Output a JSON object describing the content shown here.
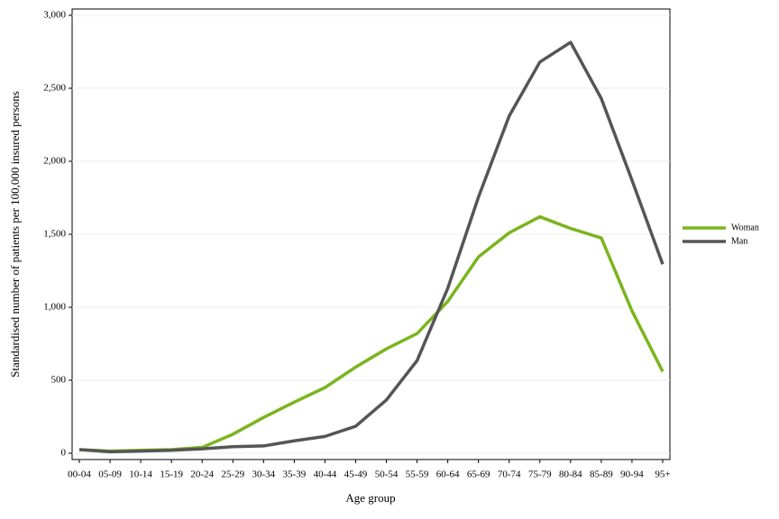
{
  "chart_data": {
    "type": "line",
    "x_label": "Age group",
    "y_label": "Standardised number of patients per 100,000 insured persons",
    "categories": [
      "00-04",
      "05-09",
      "10-14",
      "15-19",
      "20-24",
      "25-29",
      "30-34",
      "35-39",
      "40-44",
      "45-49",
      "50-54",
      "55-59",
      "60-64",
      "65-69",
      "70-74",
      "75-79",
      "80-84",
      "85-89",
      "90-94",
      "95+"
    ],
    "series": [
      {
        "name": "Woman",
        "color": "#7ab51d",
        "values": [
          25,
          15,
          20,
          25,
          40,
          130,
          245,
          350,
          450,
          590,
          715,
          820,
          1040,
          1345,
          1510,
          1620,
          1540,
          1475,
          975,
          560
        ]
      },
      {
        "name": "Man",
        "color": "#555555",
        "values": [
          25,
          10,
          15,
          20,
          30,
          45,
          50,
          85,
          115,
          185,
          365,
          635,
          1130,
          1755,
          2310,
          2680,
          2815,
          2430,
          1870,
          1295
        ]
      }
    ],
    "ylim": [
      -43,
      3043
    ],
    "yticks": [
      0,
      500,
      {
        "value": 1000,
        "label": "1,000"
      },
      {
        "value": 1500,
        "label": "1,500"
      },
      {
        "value": 2000,
        "label": "2,000"
      },
      {
        "value": 2500,
        "label": "2,500"
      },
      {
        "value": 3000,
        "label": "3,000"
      }
    ],
    "grid": true,
    "legend": "right"
  }
}
